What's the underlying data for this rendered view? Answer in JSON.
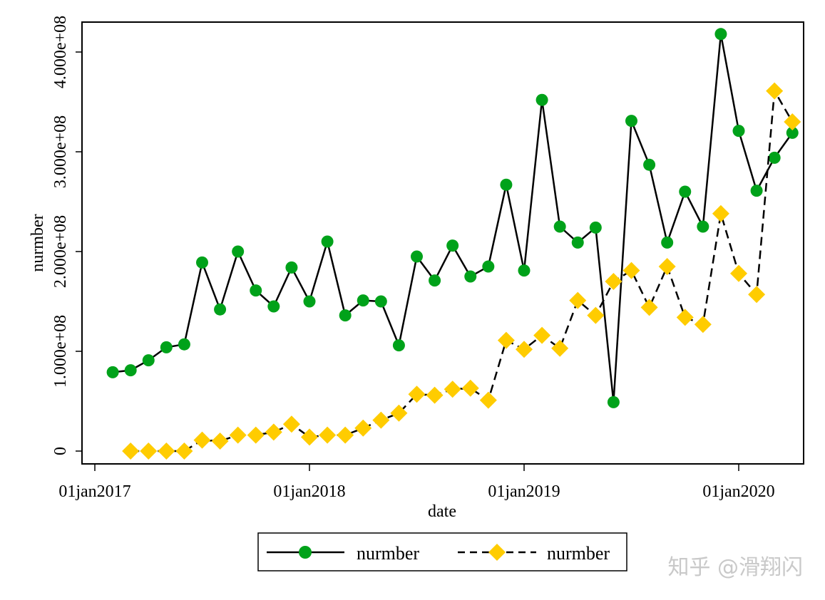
{
  "chart_data": {
    "type": "line",
    "title": "",
    "xlabel": "date",
    "ylabel": "nurmber",
    "x_unit": "month",
    "xlim": [
      "2016-12-06",
      "2020-05-27"
    ],
    "ylim": [
      -12500000,
      430000000
    ],
    "grid": false,
    "legend_position": "bottom",
    "x_ticks": [
      {
        "value": "2017-01-01",
        "label": "01jan2017"
      },
      {
        "value": "2018-01-01",
        "label": "01jan2018"
      },
      {
        "value": "2019-01-01",
        "label": "01jan2019"
      },
      {
        "value": "2020-01-01",
        "label": "01jan2020"
      }
    ],
    "y_ticks": [
      {
        "value": 0,
        "label": "0"
      },
      {
        "value": 100000000,
        "label": "1.000e+08"
      },
      {
        "value": 200000000,
        "label": "2.000e+08"
      },
      {
        "value": 300000000,
        "label": "3.000e+08"
      },
      {
        "value": 400000000,
        "label": "4.000e+08"
      }
    ],
    "series": [
      {
        "name": "nurmber",
        "style": "solid",
        "marker": "circle",
        "color": "#00a21a",
        "line_color": "#000000",
        "start": "2017-02",
        "values": [
          79000000,
          81000000,
          91000000,
          104000000,
          107000000,
          189000000,
          142000000,
          200000000,
          161000000,
          145000000,
          184000000,
          150000000,
          210000000,
          136000000,
          151000000,
          150000000,
          106000000,
          195000000,
          171000000,
          206000000,
          175000000,
          185000000,
          267000000,
          181000000,
          352000000,
          225000000,
          209000000,
          224000000,
          49000000,
          331000000,
          287000000,
          209000000,
          260000000,
          225000000,
          418000000,
          321000000,
          261000000,
          294000000,
          319000000
        ]
      },
      {
        "name": "nurmber",
        "style": "dashed",
        "marker": "diamond",
        "color": "#ffcc00",
        "line_color": "#000000",
        "start": "2017-03",
        "values": [
          0,
          0,
          0,
          0,
          11000000,
          10000000,
          16000000,
          16000000,
          19000000,
          27000000,
          14000000,
          16000000,
          16000000,
          23000000,
          31000000,
          38000000,
          57000000,
          56000000,
          62000000,
          63000000,
          51000000,
          111000000,
          102000000,
          116000000,
          103000000,
          151000000,
          136000000,
          170000000,
          181000000,
          144000000,
          185000000,
          134000000,
          127000000,
          238000000,
          178000000,
          157000000,
          361000000,
          330000000
        ]
      }
    ]
  },
  "watermark": "知乎 @滑翔闪"
}
